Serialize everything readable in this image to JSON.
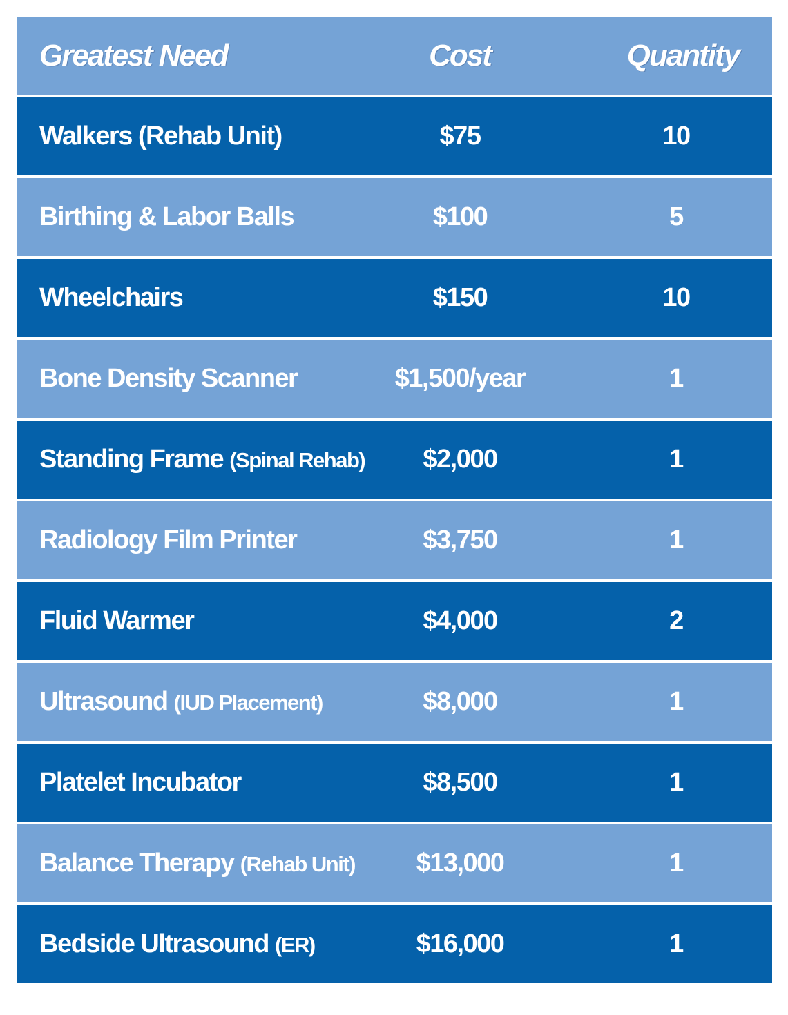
{
  "header": {
    "need": "Greatest Need",
    "cost": "Cost",
    "quantity": "Quantity"
  },
  "rows": [
    {
      "name": "Walkers (Rehab Unit)",
      "note": "",
      "cost": "$75",
      "quantity": "10"
    },
    {
      "name": "Birthing & Labor Balls",
      "note": "",
      "cost": "$100",
      "quantity": "5"
    },
    {
      "name": "Wheelchairs",
      "note": "",
      "cost": "$150",
      "quantity": "10"
    },
    {
      "name": "Bone Density Scanner",
      "note": "",
      "cost": "$1,500/year",
      "quantity": "1"
    },
    {
      "name": "Standing Frame",
      "note": "(Spinal Rehab)",
      "cost": "$2,000",
      "quantity": "1"
    },
    {
      "name": "Radiology Film Printer",
      "note": "",
      "cost": "$3,750",
      "quantity": "1"
    },
    {
      "name": "Fluid Warmer",
      "note": "",
      "cost": "$4,000",
      "quantity": "2"
    },
    {
      "name": "Ultrasound",
      "note": "(IUD Placement)",
      "cost": "$8,000",
      "quantity": "1"
    },
    {
      "name": "Platelet Incubator",
      "note": "",
      "cost": "$8,500",
      "quantity": "1"
    },
    {
      "name": "Balance Therapy",
      "note": "(Rehab Unit)",
      "cost": "$13,000",
      "quantity": "1"
    },
    {
      "name": "Bedside Ultrasound",
      "note": "(ER)",
      "cost": "$16,000",
      "quantity": "1"
    }
  ],
  "colors": {
    "dark_row": "#0561aa",
    "light_row": "#75a3d6",
    "text": "#ffffff"
  }
}
